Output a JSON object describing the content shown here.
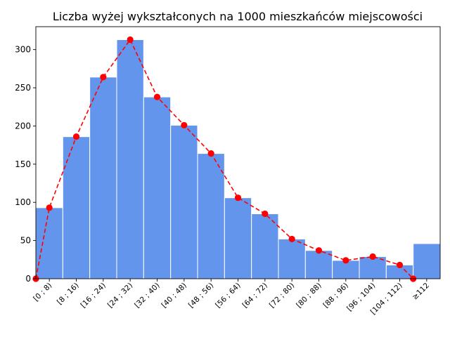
{
  "chart_data": {
    "type": "bar",
    "title": "Liczba wyżej wykształconych na 1000 mieszkańców miejscowości",
    "xlabel": "",
    "ylabel": "",
    "categories": [
      "[0 ; 8)",
      "[8 ; 16)",
      "[16 ; 24)",
      "[24 ; 32)",
      "[32 ; 40)",
      "[40 ; 48)",
      "[48 ; 56)",
      "[56 ; 64)",
      "[64 ; 72)",
      "[72 ; 80)",
      "[80 ; 88)",
      "[88 ; 96)",
      "[96 ; 104)",
      "[104 ; 112)",
      "≥112"
    ],
    "series": [
      {
        "type": "bar",
        "color": "#6495ED",
        "values": [
          93,
          186,
          264,
          313,
          238,
          201,
          164,
          106,
          85,
          52,
          37,
          24,
          29,
          18,
          46
        ]
      },
      {
        "type": "line",
        "style": "dashed",
        "marker": "circle",
        "color": "#FF0000",
        "x": [
          0,
          0.5,
          1.5,
          2.5,
          3.5,
          4.5,
          5.5,
          6.5,
          7.5,
          8.5,
          9.5,
          10.5,
          11.5,
          12.5,
          13.5,
          14
        ],
        "values": [
          0,
          93,
          186,
          264,
          313,
          238,
          201,
          164,
          106,
          85,
          52,
          37,
          24,
          29,
          18,
          0
        ]
      }
    ],
    "ylim": [
      0,
      330
    ],
    "yticks": [
      0,
      50,
      100,
      150,
      200,
      250,
      300
    ],
    "grid": false
  }
}
